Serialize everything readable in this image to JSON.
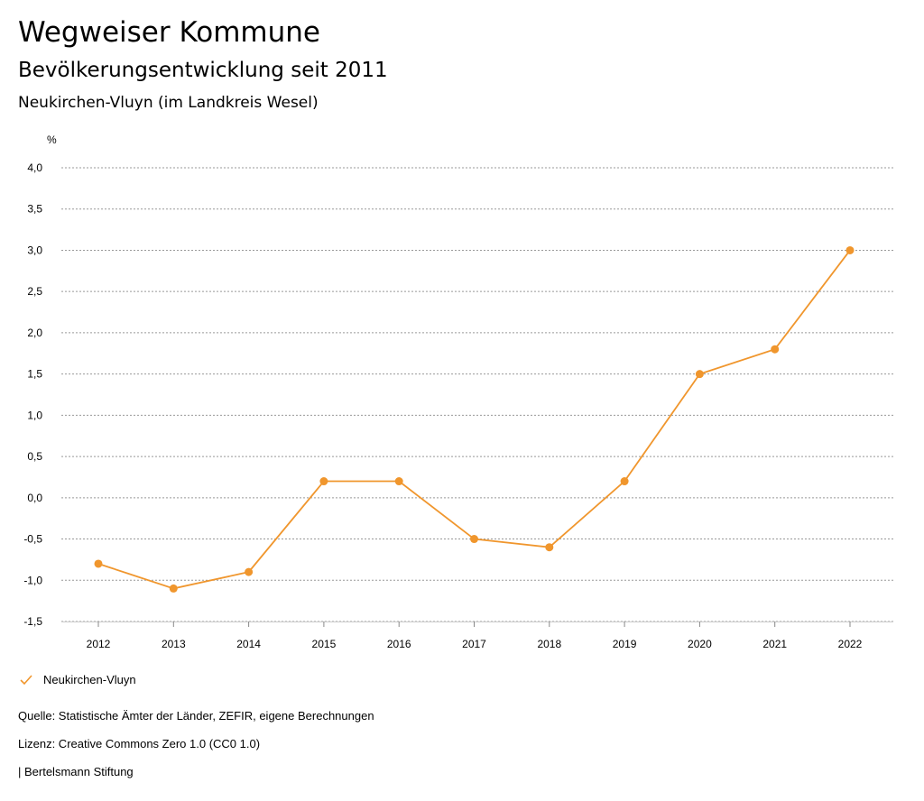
{
  "header": {
    "title": "Wegweiser Kommune",
    "subtitle": "Bevölkerungsentwicklung seit 2011",
    "region": "Neukirchen-Vluyn (im Landkreis Wesel)"
  },
  "chart_data": {
    "type": "line",
    "ylabel": "%",
    "x": [
      "2012",
      "2013",
      "2014",
      "2015",
      "2016",
      "2017",
      "2018",
      "2019",
      "2020",
      "2021",
      "2022"
    ],
    "series": [
      {
        "name": "Neukirchen-Vluyn",
        "color": "#f0962d",
        "values": [
          -0.8,
          -1.1,
          -0.9,
          0.2,
          0.2,
          -0.5,
          -0.6,
          0.2,
          1.5,
          1.8,
          3.0
        ]
      }
    ],
    "ylim": [
      -1.5,
      4.0
    ],
    "yticks": [
      "4,0",
      "3,5",
      "3,0",
      "2,5",
      "2,0",
      "1,5",
      "1,0",
      "0,5",
      "0,0",
      "-0,5",
      "-1,0",
      "-1,5"
    ],
    "grid": true,
    "legend": "bottom-left"
  },
  "legend": {
    "label": "Neukirchen-Vluyn"
  },
  "footer": {
    "source": "Quelle: Statistische Ämter der Länder, ZEFIR, eigene Berechnungen",
    "license": "Lizenz: Creative Commons Zero 1.0 (CC0 1.0)",
    "brand": "| Bertelsmann Stiftung"
  }
}
